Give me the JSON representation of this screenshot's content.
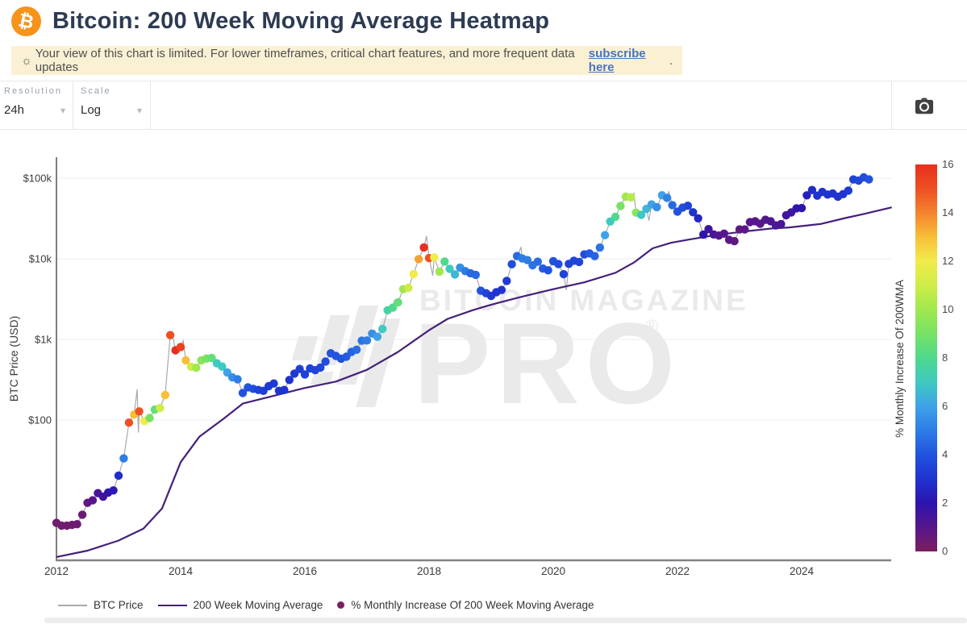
{
  "header": {
    "title": "Bitcoin: 200 Week Moving Average Heatmap",
    "notice": {
      "icon": "sun-icon",
      "text": "Your view of this chart is limited. For lower timeframes, critical chart features, and more frequent data updates",
      "link_text": "subscribe here",
      "suffix": "."
    }
  },
  "toolbar": {
    "resolution_label": "Resolution",
    "resolution_value": "24h",
    "scale_label": "Scale",
    "scale_value": "Log",
    "camera_icon": "camera-icon"
  },
  "watermark": {
    "line1": "BITCOIN MAGAZINE",
    "line2": "PRO",
    "reg_mark": "®"
  },
  "legend": [
    {
      "type": "line",
      "color": "#a9a9a9",
      "label": "BTC Price"
    },
    {
      "type": "line",
      "color": "#44207a",
      "label": "200 Week Moving Average"
    },
    {
      "type": "dot",
      "color": "#7c1e5f",
      "label": "% Monthly Increase Of 200 Week Moving Average"
    }
  ],
  "chart_data": {
    "type": "scatter",
    "title": "Bitcoin: 200 Week Moving Average Heatmap",
    "xlabel": "",
    "ylabel": "BTC Price (USD)",
    "ylog": true,
    "xlim": [
      2012,
      2025.45
    ],
    "ylim": [
      1.8,
      180000
    ],
    "grid": "horizontal",
    "x_ticks": [
      "2012",
      "2014",
      "2016",
      "2018",
      "2020",
      "2022",
      "2024"
    ],
    "x_tick_values": [
      2012,
      2014,
      2016,
      2018,
      2020,
      2022,
      2024
    ],
    "y_ticks": [
      {
        "label": "$100k",
        "value": 100000
      },
      {
        "label": "$10k",
        "value": 10000
      },
      {
        "label": "$1k",
        "value": 1000
      },
      {
        "label": "$100",
        "value": 100
      }
    ],
    "colorbar": {
      "label": "% Monthly Increase Of 200WMA",
      "min": 0,
      "max": 16,
      "ticks": [
        16,
        14,
        12,
        10,
        8,
        6,
        4,
        2,
        0
      ],
      "stops": [
        [
          0,
          "#7c1e5f"
        ],
        [
          1,
          "#57168b"
        ],
        [
          2,
          "#2d14b0"
        ],
        [
          3,
          "#1f33cf"
        ],
        [
          4,
          "#2153de"
        ],
        [
          5,
          "#2e7ce6"
        ],
        [
          6,
          "#3fa2e8"
        ],
        [
          7,
          "#3ec9c1"
        ],
        [
          8,
          "#4fd98d"
        ],
        [
          9,
          "#76e264"
        ],
        [
          10,
          "#a0e84f"
        ],
        [
          11,
          "#cdec48"
        ],
        [
          12,
          "#f1eb4b"
        ],
        [
          13,
          "#f7bf39"
        ],
        [
          14,
          "#f4842d"
        ],
        [
          15,
          "#ee5024"
        ],
        [
          16,
          "#e72f1e"
        ]
      ]
    },
    "series": [
      {
        "name": "BTC Price",
        "type": "line",
        "color": "#a9a9a9",
        "points_source": "heatmap_dots",
        "extra_spike_points": [
          [
            2013.3,
            240
          ],
          [
            2013.32,
            70
          ],
          [
            2013.86,
            1240
          ],
          [
            2014.04,
            960
          ],
          [
            2017.44,
            3000
          ],
          [
            2017.96,
            19200
          ],
          [
            2018.06,
            6200
          ],
          [
            2019.48,
            13800
          ],
          [
            2020.21,
            4100
          ],
          [
            2021.3,
            64800
          ],
          [
            2021.54,
            29800
          ],
          [
            2021.86,
            69000
          ],
          [
            2022.46,
            17700
          ],
          [
            2024.21,
            73700
          ],
          [
            2025.04,
            106000
          ]
        ]
      },
      {
        "name": "200 Week Moving Average",
        "type": "line",
        "color": "#44207a",
        "points": [
          [
            2012.0,
            2.0
          ],
          [
            2012.5,
            2.4
          ],
          [
            2013.0,
            3.2
          ],
          [
            2013.4,
            4.5
          ],
          [
            2013.7,
            8
          ],
          [
            2014.0,
            30
          ],
          [
            2014.3,
            62
          ],
          [
            2014.7,
            105
          ],
          [
            2015.0,
            160
          ],
          [
            2015.5,
            200
          ],
          [
            2016.0,
            250
          ],
          [
            2016.5,
            300
          ],
          [
            2017.0,
            420
          ],
          [
            2017.5,
            700
          ],
          [
            2018.0,
            1300
          ],
          [
            2018.3,
            1800
          ],
          [
            2018.7,
            2300
          ],
          [
            2019.0,
            2700
          ],
          [
            2019.5,
            3400
          ],
          [
            2020.0,
            4200
          ],
          [
            2020.5,
            5100
          ],
          [
            2021.0,
            6700
          ],
          [
            2021.3,
            9000
          ],
          [
            2021.6,
            13500
          ],
          [
            2021.9,
            15800
          ],
          [
            2022.2,
            17400
          ],
          [
            2022.6,
            19600
          ],
          [
            2023.0,
            21500
          ],
          [
            2023.5,
            23700
          ],
          [
            2023.8,
            24500
          ],
          [
            2024.3,
            27000
          ],
          [
            2024.7,
            32000
          ],
          [
            2025.0,
            36000
          ],
          [
            2025.45,
            43500
          ]
        ]
      },
      {
        "name": "% Monthly Increase Of 200 Week Moving Average",
        "type": "scatter",
        "color_by": "pct_monthly_increase_of_200wma",
        "points": [
          [
            2012.0,
            5.3,
            0.3
          ],
          [
            2012.083,
            4.9,
            0.3
          ],
          [
            2012.167,
            4.9,
            0.3
          ],
          [
            2012.25,
            5.0,
            0.4
          ],
          [
            2012.333,
            5.1,
            0.4
          ],
          [
            2012.417,
            6.7,
            0.5
          ],
          [
            2012.5,
            9.4,
            0.8
          ],
          [
            2012.583,
            10.1,
            1.0
          ],
          [
            2012.667,
            12.4,
            1.3
          ],
          [
            2012.75,
            11.2,
            1.6
          ],
          [
            2012.833,
            12.6,
            1.9
          ],
          [
            2012.917,
            13.4,
            2.2
          ],
          [
            2013.0,
            20.4,
            2.8
          ],
          [
            2013.083,
            33.4,
            5.0
          ],
          [
            2013.167,
            93,
            15
          ],
          [
            2013.25,
            117,
            13
          ],
          [
            2013.333,
            128,
            15
          ],
          [
            2013.417,
            97,
            12
          ],
          [
            2013.5,
            106,
            9
          ],
          [
            2013.583,
            135,
            8.5
          ],
          [
            2013.667,
            141,
            11
          ],
          [
            2013.75,
            204,
            13
          ],
          [
            2013.833,
            1130,
            15
          ],
          [
            2013.917,
            732,
            16
          ],
          [
            2014.0,
            806,
            15.5
          ],
          [
            2014.083,
            550,
            13
          ],
          [
            2014.167,
            458,
            11
          ],
          [
            2014.25,
            446,
            10
          ],
          [
            2014.333,
            550,
            9.5
          ],
          [
            2014.417,
            580,
            9
          ],
          [
            2014.5,
            589,
            8.5
          ],
          [
            2014.583,
            506,
            7
          ],
          [
            2014.667,
            460,
            7
          ],
          [
            2014.75,
            388,
            6
          ],
          [
            2014.833,
            338,
            5.5
          ],
          [
            2014.917,
            320,
            5
          ],
          [
            2015.0,
            217,
            4
          ],
          [
            2015.083,
            254,
            4
          ],
          [
            2015.167,
            244,
            3.8
          ],
          [
            2015.25,
            236,
            3.5
          ],
          [
            2015.333,
            230,
            3.3
          ],
          [
            2015.417,
            263,
            3.2
          ],
          [
            2015.5,
            284,
            3.2
          ],
          [
            2015.583,
            230,
            3
          ],
          [
            2015.667,
            236,
            3
          ],
          [
            2015.75,
            314,
            3
          ],
          [
            2015.833,
            377,
            3.2
          ],
          [
            2015.917,
            430,
            3.4
          ],
          [
            2016.0,
            368,
            3.4
          ],
          [
            2016.083,
            437,
            3.5
          ],
          [
            2016.167,
            416,
            3.5
          ],
          [
            2016.25,
            448,
            3.6
          ],
          [
            2016.333,
            531,
            3.8
          ],
          [
            2016.417,
            673,
            4
          ],
          [
            2016.5,
            624,
            4
          ],
          [
            2016.583,
            575,
            4
          ],
          [
            2016.667,
            610,
            4.2
          ],
          [
            2016.75,
            700,
            4.4
          ],
          [
            2016.833,
            745,
            4.6
          ],
          [
            2016.917,
            963,
            4.8
          ],
          [
            2017.0,
            970,
            5
          ],
          [
            2017.083,
            1180,
            5.5
          ],
          [
            2017.167,
            1080,
            6
          ],
          [
            2017.25,
            1350,
            7
          ],
          [
            2017.333,
            2300,
            7.5
          ],
          [
            2017.417,
            2480,
            8
          ],
          [
            2017.5,
            2875,
            8.5
          ],
          [
            2017.583,
            4200,
            10
          ],
          [
            2017.667,
            4360,
            11
          ],
          [
            2017.75,
            6468,
            12
          ],
          [
            2017.833,
            9916,
            13.5
          ],
          [
            2017.917,
            13850,
            16
          ],
          [
            2018.0,
            10221,
            15
          ],
          [
            2018.083,
            10397,
            12
          ],
          [
            2018.167,
            6938,
            10
          ],
          [
            2018.25,
            9240,
            8
          ],
          [
            2018.333,
            7494,
            7
          ],
          [
            2018.417,
            6404,
            6.5
          ],
          [
            2018.5,
            7780,
            5.5
          ],
          [
            2018.583,
            7037,
            5
          ],
          [
            2018.667,
            6625,
            4.5
          ],
          [
            2018.75,
            6317,
            4.5
          ],
          [
            2018.833,
            4017,
            4
          ],
          [
            2018.917,
            3742,
            3.5
          ],
          [
            2019.0,
            3457,
            3.2
          ],
          [
            2019.083,
            3854,
            3
          ],
          [
            2019.167,
            4105,
            3
          ],
          [
            2019.25,
            5320,
            3.2
          ],
          [
            2019.333,
            8574,
            3.8
          ],
          [
            2019.417,
            10817,
            4.5
          ],
          [
            2019.5,
            10085,
            5
          ],
          [
            2019.583,
            9630,
            5
          ],
          [
            2019.667,
            8293,
            4.8
          ],
          [
            2019.75,
            9199,
            4.6
          ],
          [
            2019.833,
            7569,
            4.2
          ],
          [
            2019.917,
            7193,
            4
          ],
          [
            2020.0,
            9350,
            4
          ],
          [
            2020.083,
            8599,
            3.8
          ],
          [
            2020.167,
            6438,
            3.5
          ],
          [
            2020.25,
            8658,
            3.5
          ],
          [
            2020.333,
            9461,
            3.6
          ],
          [
            2020.417,
            9137,
            3.6
          ],
          [
            2020.5,
            11323,
            3.8
          ],
          [
            2020.583,
            11680,
            4.2
          ],
          [
            2020.667,
            10784,
            4.4
          ],
          [
            2020.75,
            13781,
            4.8
          ],
          [
            2020.833,
            19625,
            6
          ],
          [
            2020.917,
            29002,
            7
          ],
          [
            2021.0,
            33114,
            8
          ],
          [
            2021.083,
            45137,
            9
          ],
          [
            2021.167,
            58918,
            10
          ],
          [
            2021.25,
            57750,
            10.5
          ],
          [
            2021.333,
            37332,
            9.5
          ],
          [
            2021.417,
            35040,
            7
          ],
          [
            2021.5,
            41626,
            6.5
          ],
          [
            2021.583,
            47166,
            6
          ],
          [
            2021.667,
            43790,
            5.5
          ],
          [
            2021.75,
            61318,
            6
          ],
          [
            2021.833,
            57005,
            5.2
          ],
          [
            2021.917,
            46306,
            4.5
          ],
          [
            2022.0,
            38483,
            4
          ],
          [
            2022.083,
            43193,
            3.8
          ],
          [
            2022.167,
            45538,
            3.5
          ],
          [
            2022.25,
            37714,
            3
          ],
          [
            2022.333,
            31792,
            2.5
          ],
          [
            2022.417,
            19985,
            2
          ],
          [
            2022.5,
            23336,
            1.6
          ],
          [
            2022.583,
            20049,
            1.3
          ],
          [
            2022.667,
            19431,
            1.1
          ],
          [
            2022.75,
            20495,
            1
          ],
          [
            2022.833,
            17168,
            0.9
          ],
          [
            2022.917,
            16547,
            0.8
          ],
          [
            2023.0,
            23139,
            0.8
          ],
          [
            2023.083,
            23147,
            0.9
          ],
          [
            2023.167,
            28478,
            1
          ],
          [
            2023.25,
            29268,
            1
          ],
          [
            2023.333,
            27219,
            1
          ],
          [
            2023.417,
            30477,
            1.1
          ],
          [
            2023.5,
            29230,
            1.2
          ],
          [
            2023.583,
            25931,
            1.2
          ],
          [
            2023.667,
            26967,
            1.3
          ],
          [
            2023.75,
            34667,
            1.5
          ],
          [
            2023.833,
            37712,
            1.6
          ],
          [
            2023.917,
            42265,
            1.8
          ],
          [
            2024.0,
            42580,
            2
          ],
          [
            2024.083,
            61198,
            2.4
          ],
          [
            2024.167,
            71333,
            2.8
          ],
          [
            2024.25,
            60636,
            3
          ],
          [
            2024.333,
            67491,
            3
          ],
          [
            2024.417,
            62678,
            3
          ],
          [
            2024.5,
            64619,
            3
          ],
          [
            2024.583,
            58969,
            3
          ],
          [
            2024.667,
            63329,
            3
          ],
          [
            2024.75,
            70215,
            3.2
          ],
          [
            2024.833,
            96449,
            3.5
          ],
          [
            2024.917,
            93429,
            3.6
          ],
          [
            2025.0,
            102400,
            3.8
          ],
          [
            2025.083,
            96500,
            4
          ]
        ]
      }
    ]
  }
}
